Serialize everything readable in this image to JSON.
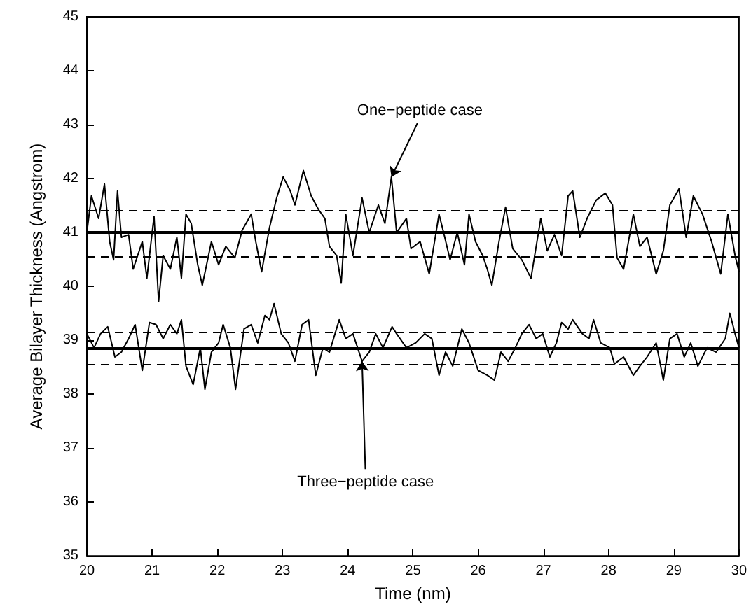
{
  "chart_data": {
    "type": "line",
    "xlabel": "Time (nm)",
    "ylabel": "Average Bilayer Thickness (Angstrom)",
    "xlim": [
      20,
      30
    ],
    "ylim": [
      35,
      45
    ],
    "xticks": [
      20,
      21,
      22,
      23,
      24,
      25,
      26,
      27,
      28,
      29,
      30
    ],
    "yticks": [
      35,
      36,
      37,
      38,
      39,
      40,
      41,
      42,
      43,
      44,
      45
    ],
    "grid": false,
    "marker": "none",
    "line_style": "solid",
    "series": [
      {
        "color": "#000000",
        "x": [
          20.0,
          20.07,
          20.18,
          20.27,
          20.35,
          20.41,
          20.47,
          20.53,
          20.64,
          20.71,
          20.85,
          20.92,
          21.03,
          21.1,
          21.17,
          21.28,
          21.38,
          21.45,
          21.52,
          21.6,
          21.7,
          21.77,
          21.91,
          22.02,
          22.13,
          22.27,
          22.38,
          22.52,
          22.59,
          22.68,
          22.8,
          22.91,
          23.01,
          23.12,
          23.19,
          23.32,
          23.44,
          23.55,
          23.65,
          23.72,
          23.83,
          23.9,
          23.97,
          24.08,
          24.22,
          24.33,
          24.47,
          24.57,
          24.67,
          24.75,
          24.9,
          24.97,
          25.11,
          25.25,
          25.4,
          25.47,
          25.57,
          25.68,
          25.79,
          25.86,
          25.96,
          26.07,
          26.14,
          26.21,
          26.32,
          26.42,
          26.53,
          26.67,
          26.81,
          26.96,
          27.06,
          27.17,
          27.28,
          27.38,
          27.45,
          27.56,
          27.67,
          27.81,
          27.95,
          28.06,
          28.13,
          28.23,
          28.38,
          28.48,
          28.59,
          28.73,
          28.84,
          28.94,
          29.08,
          29.19,
          29.3,
          29.44,
          29.58,
          29.72,
          29.83,
          29.94,
          30.0
        ],
        "values": [
          41.0,
          41.68,
          41.26,
          41.9,
          40.83,
          40.49,
          41.77,
          40.91,
          40.96,
          40.32,
          40.83,
          40.15,
          41.3,
          39.72,
          40.57,
          40.32,
          40.91,
          40.15,
          41.34,
          41.17,
          40.4,
          40.02,
          40.83,
          40.4,
          40.74,
          40.53,
          41.04,
          41.34,
          40.83,
          40.27,
          41.09,
          41.64,
          42.03,
          41.77,
          41.51,
          42.15,
          41.68,
          41.43,
          41.26,
          40.74,
          40.57,
          40.06,
          41.34,
          40.57,
          41.64,
          41.0,
          41.51,
          41.17,
          42.03,
          41.0,
          41.26,
          40.7,
          40.83,
          40.23,
          41.34,
          41.0,
          40.49,
          41.0,
          40.4,
          41.34,
          40.83,
          40.57,
          40.32,
          40.02,
          40.83,
          41.47,
          40.7,
          40.49,
          40.15,
          41.26,
          40.66,
          40.96,
          40.57,
          41.68,
          41.77,
          40.91,
          41.26,
          41.6,
          41.73,
          41.51,
          40.53,
          40.32,
          41.34,
          40.74,
          40.91,
          40.23,
          40.66,
          41.51,
          41.81,
          40.91,
          41.68,
          41.34,
          40.83,
          40.23,
          41.34,
          40.57,
          40.27
        ]
      },
      {
        "color": "#000000",
        "x": [
          20.0,
          20.11,
          20.21,
          20.32,
          20.43,
          20.53,
          20.64,
          20.74,
          20.85,
          20.96,
          21.06,
          21.17,
          21.28,
          21.38,
          21.45,
          21.52,
          21.63,
          21.74,
          21.81,
          21.91,
          22.02,
          22.09,
          22.2,
          22.28,
          22.41,
          22.52,
          22.62,
          22.73,
          22.8,
          22.87,
          22.98,
          23.09,
          23.19,
          23.3,
          23.4,
          23.51,
          23.62,
          23.72,
          23.87,
          23.97,
          24.08,
          24.22,
          24.33,
          24.43,
          24.54,
          24.68,
          24.75,
          24.9,
          25.04,
          25.18,
          25.29,
          25.4,
          25.5,
          25.61,
          25.75,
          25.86,
          26.0,
          26.14,
          26.25,
          26.35,
          26.46,
          26.57,
          26.67,
          26.78,
          26.89,
          26.99,
          27.1,
          27.2,
          27.28,
          27.38,
          27.45,
          27.6,
          27.7,
          27.77,
          27.88,
          28.02,
          28.09,
          28.23,
          28.38,
          28.48,
          28.59,
          28.73,
          28.84,
          28.94,
          29.05,
          29.16,
          29.26,
          29.37,
          29.51,
          29.65,
          29.79,
          29.86,
          29.94,
          30.0
        ],
        "values": [
          39.12,
          38.86,
          39.12,
          39.25,
          38.69,
          38.78,
          39.03,
          39.29,
          38.44,
          39.33,
          39.29,
          39.03,
          39.29,
          39.12,
          39.38,
          38.52,
          38.18,
          38.86,
          38.09,
          38.78,
          38.95,
          39.29,
          38.86,
          38.09,
          39.21,
          39.29,
          38.95,
          39.46,
          39.38,
          39.68,
          39.12,
          38.95,
          38.61,
          39.29,
          39.38,
          38.35,
          38.86,
          38.78,
          39.38,
          39.03,
          39.12,
          38.61,
          38.78,
          39.12,
          38.86,
          39.25,
          39.12,
          38.86,
          38.95,
          39.12,
          39.03,
          38.35,
          38.78,
          38.52,
          39.21,
          38.95,
          38.44,
          38.35,
          38.26,
          38.78,
          38.61,
          38.86,
          39.12,
          39.29,
          39.03,
          39.12,
          38.69,
          38.95,
          39.33,
          39.21,
          39.38,
          39.12,
          39.03,
          39.38,
          38.95,
          38.86,
          38.56,
          38.69,
          38.35,
          38.52,
          38.69,
          38.95,
          38.26,
          39.03,
          39.12,
          38.69,
          38.95,
          38.52,
          38.86,
          38.78,
          39.03,
          39.5,
          39.12,
          38.86
        ]
      }
    ],
    "ref_lines": [
      {
        "axis": "y",
        "value": 41.0,
        "color": "#000000",
        "line_style": "solid"
      },
      {
        "axis": "y",
        "value": 41.4,
        "color": "#000000",
        "line_style": "dashed"
      },
      {
        "axis": "y",
        "value": 40.55,
        "color": "#000000",
        "line_style": "dashed"
      },
      {
        "axis": "y",
        "value": 38.85,
        "color": "#000000",
        "line_style": "solid"
      },
      {
        "axis": "y",
        "value": 39.15,
        "color": "#000000",
        "line_style": "dashed"
      },
      {
        "axis": "y",
        "value": 38.55,
        "color": "#000000",
        "line_style": "dashed"
      }
    ],
    "annotations": [
      {
        "text": "One−peptide case",
        "x": 24.67,
        "y": 42.03
      },
      {
        "text": "Three−peptide case",
        "x": 24.22,
        "y": 38.61
      }
    ]
  }
}
